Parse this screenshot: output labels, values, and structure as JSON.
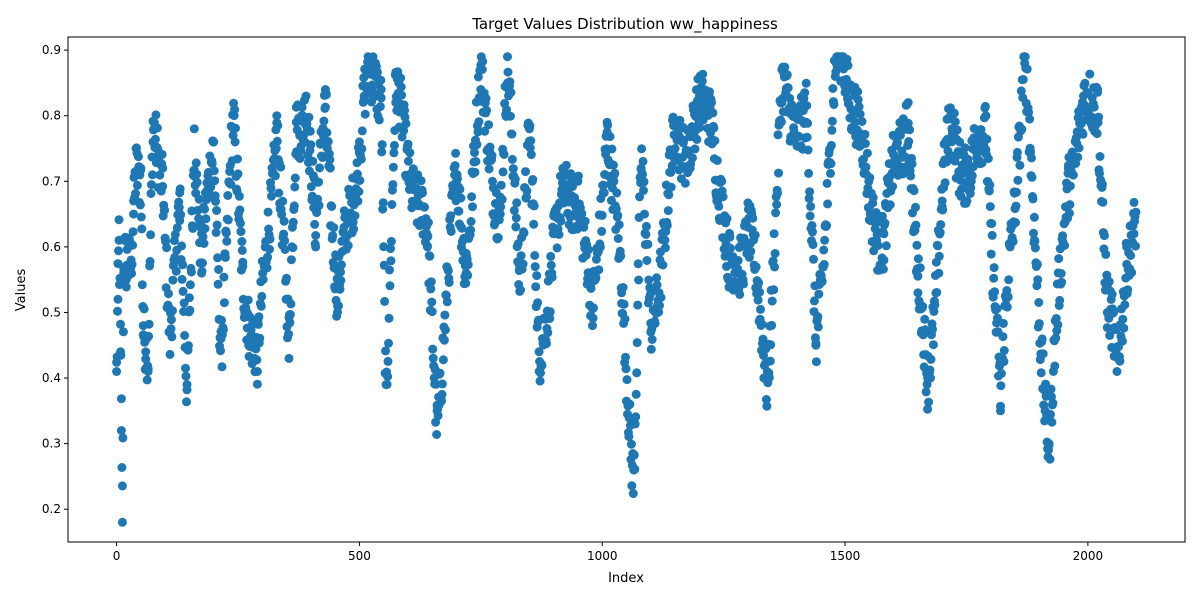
{
  "chart_data": {
    "type": "scatter",
    "title": "Target Values Distribution ww_happiness",
    "xlabel": "Index",
    "ylabel": "Values",
    "xlim": [
      -100,
      2200
    ],
    "ylim": [
      0.15,
      0.92
    ],
    "xticks": [
      0,
      500,
      1000,
      1500,
      2000
    ],
    "yticks": [
      0.2,
      0.3,
      0.4,
      0.5,
      0.6,
      0.7,
      0.8,
      0.9
    ],
    "xtick_labels": [
      "0",
      "500",
      "1000",
      "1500",
      "2000"
    ],
    "ytick_labels": [
      "0.2",
      "0.3",
      "0.4",
      "0.5",
      "0.6",
      "0.7",
      "0.8",
      "0.9"
    ],
    "grid": false,
    "marker_color": "#1f77b4",
    "point_count": 2100,
    "series": [
      {
        "values_outline": [
          [
            0,
            0.41
          ],
          [
            3,
            0.52
          ],
          [
            5,
            0.61
          ],
          [
            8,
            0.44
          ],
          [
            10,
            0.32
          ],
          [
            12,
            0.18
          ],
          [
            15,
            0.56
          ],
          [
            20,
            0.55
          ],
          [
            30,
            0.58
          ],
          [
            35,
            0.67
          ],
          [
            40,
            0.75
          ],
          [
            50,
            0.72
          ],
          [
            55,
            0.48
          ],
          [
            60,
            0.44
          ],
          [
            65,
            0.41
          ],
          [
            75,
            0.76
          ],
          [
            95,
            0.72
          ],
          [
            110,
            0.47
          ],
          [
            130,
            0.64
          ],
          [
            145,
            0.39
          ],
          [
            160,
            0.78
          ],
          [
            175,
            0.56
          ],
          [
            200,
            0.76
          ],
          [
            215,
            0.46
          ],
          [
            240,
            0.77
          ],
          [
            260,
            0.57
          ],
          [
            290,
            0.41
          ],
          [
            330,
            0.8
          ],
          [
            355,
            0.43
          ],
          [
            370,
            0.79
          ],
          [
            390,
            0.83
          ],
          [
            410,
            0.6
          ],
          [
            430,
            0.84
          ],
          [
            455,
            0.51
          ],
          [
            500,
            0.76
          ],
          [
            510,
            0.83
          ],
          [
            545,
            0.84
          ],
          [
            555,
            0.39
          ],
          [
            575,
            0.82
          ],
          [
            610,
            0.71
          ],
          [
            640,
            0.6
          ],
          [
            660,
            0.35
          ],
          [
            700,
            0.7
          ],
          [
            720,
            0.59
          ],
          [
            750,
            0.84
          ],
          [
            790,
            0.65
          ],
          [
            805,
            0.85
          ],
          [
            830,
            0.57
          ],
          [
            850,
            0.78
          ],
          [
            870,
            0.41
          ],
          [
            900,
            0.62
          ],
          [
            950,
            0.7
          ],
          [
            980,
            0.48
          ],
          [
            1010,
            0.79
          ],
          [
            1040,
            0.53
          ],
          [
            1065,
            0.26
          ],
          [
            1080,
            0.72
          ],
          [
            1100,
            0.47
          ],
          [
            1150,
            0.75
          ],
          [
            1200,
            0.79
          ],
          [
            1225,
            0.82
          ],
          [
            1260,
            0.55
          ],
          [
            1300,
            0.63
          ],
          [
            1340,
            0.41
          ],
          [
            1370,
            0.82
          ],
          [
            1420,
            0.79
          ],
          [
            1440,
            0.45
          ],
          [
            1480,
            0.86
          ],
          [
            1495,
            0.88
          ],
          [
            1520,
            0.83
          ],
          [
            1550,
            0.66
          ],
          [
            1580,
            0.62
          ],
          [
            1630,
            0.82
          ],
          [
            1650,
            0.53
          ],
          [
            1670,
            0.4
          ],
          [
            1700,
            0.67
          ],
          [
            1720,
            0.78
          ],
          [
            1760,
            0.7
          ],
          [
            1790,
            0.8
          ],
          [
            1820,
            0.35
          ],
          [
            1840,
            0.6
          ],
          [
            1870,
            0.88
          ],
          [
            1890,
            0.61
          ],
          [
            1920,
            0.3
          ],
          [
            1960,
            0.72
          ],
          [
            2000,
            0.81
          ],
          [
            2020,
            0.84
          ],
          [
            2040,
            0.5
          ],
          [
            2060,
            0.41
          ],
          [
            2080,
            0.6
          ],
          [
            2095,
            0.62
          ]
        ]
      }
    ]
  }
}
